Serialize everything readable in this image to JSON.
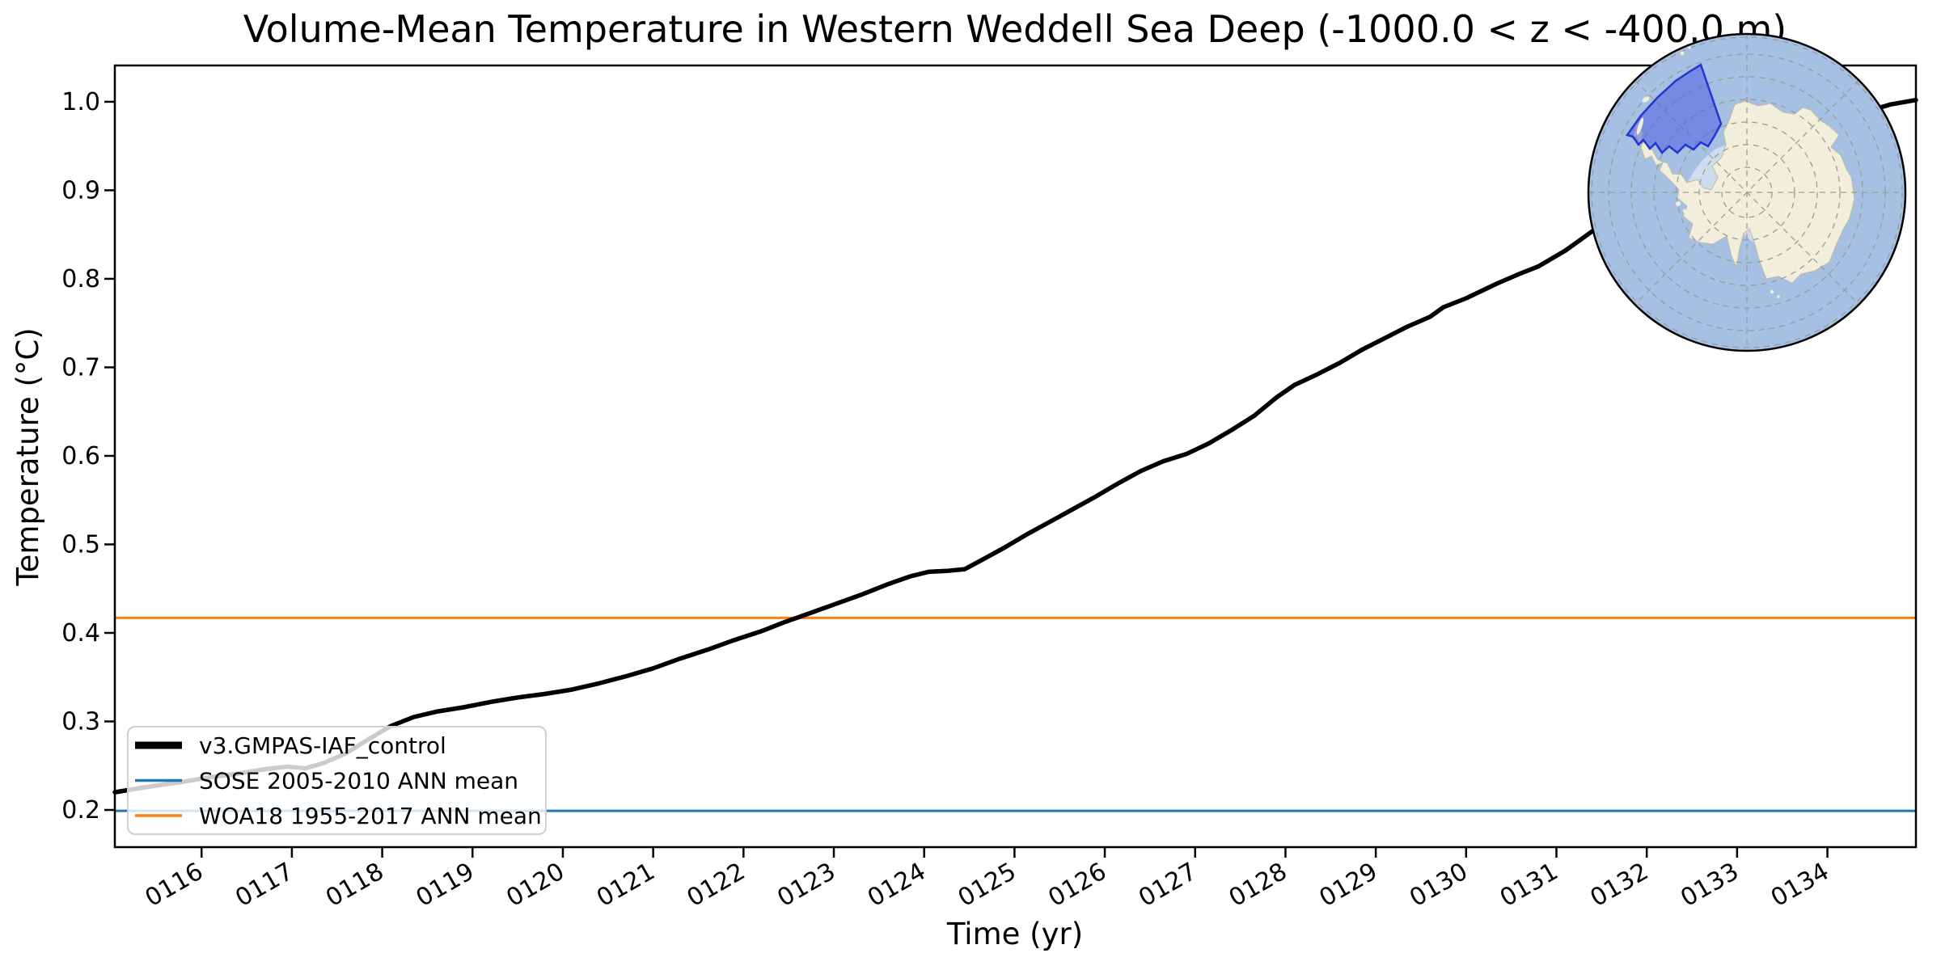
{
  "title": "Volume-Mean Temperature in Western Weddell Sea Deep (-1000.0 < z < -400.0 m)",
  "axes": {
    "xlabel": "Time (yr)",
    "ylabel": "Temperature (°C)",
    "x_tick_labels": [
      "0116",
      "0117",
      "0118",
      "0119",
      "0120",
      "0121",
      "0122",
      "0123",
      "0124",
      "0125",
      "0126",
      "0127",
      "0128",
      "0129",
      "0130",
      "0131",
      "0132",
      "0133",
      "0134"
    ],
    "y_tick_labels": [
      "0.2",
      "0.3",
      "0.4",
      "0.5",
      "0.6",
      "0.7",
      "0.8",
      "0.9",
      "1.0"
    ]
  },
  "legend": {
    "items": [
      {
        "label": "v3.GMPAS-IAF_control",
        "color": "#000000",
        "line_width": 9
      },
      {
        "label": "SOSE 2005-2010 ANN mean",
        "color": "#1f77b4",
        "line_width": 3.5
      },
      {
        "label": "WOA18 1955-2017 ANN mean",
        "color": "#ff7f0e",
        "line_width": 3.5
      }
    ]
  },
  "chart_data": {
    "type": "line",
    "title": "Volume-Mean Temperature in Western Weddell Sea Deep (-1000.0 < z < -400.0 m)",
    "xlabel": "Time (yr)",
    "ylabel": "Temperature (°C)",
    "xlim": [
      115.04,
      134.98
    ],
    "ylim": [
      0.158,
      1.041
    ],
    "x_ticks": [
      116,
      117,
      118,
      119,
      120,
      121,
      122,
      123,
      124,
      125,
      126,
      127,
      128,
      129,
      130,
      131,
      132,
      133,
      134
    ],
    "y_ticks": [
      0.2,
      0.3,
      0.4,
      0.5,
      0.6,
      0.7,
      0.8,
      0.9,
      1.0
    ],
    "grid": false,
    "legend_position": "lower left",
    "series": [
      {
        "name": "v3.GMPAS-IAF_control",
        "type": "line",
        "color": "#000000",
        "points": [
          [
            115.04,
            0.22
          ],
          [
            115.4,
            0.226
          ],
          [
            115.8,
            0.232
          ],
          [
            116.1,
            0.237
          ],
          [
            116.4,
            0.241
          ],
          [
            116.7,
            0.246
          ],
          [
            116.95,
            0.249
          ],
          [
            117.15,
            0.247
          ],
          [
            117.35,
            0.253
          ],
          [
            117.6,
            0.264
          ],
          [
            117.85,
            0.28
          ],
          [
            118.1,
            0.295
          ],
          [
            118.35,
            0.305
          ],
          [
            118.6,
            0.311
          ],
          [
            118.9,
            0.316
          ],
          [
            119.2,
            0.322
          ],
          [
            119.5,
            0.327
          ],
          [
            119.8,
            0.331
          ],
          [
            120.1,
            0.336
          ],
          [
            120.4,
            0.343
          ],
          [
            120.7,
            0.351
          ],
          [
            121.0,
            0.36
          ],
          [
            121.3,
            0.371
          ],
          [
            121.6,
            0.381
          ],
          [
            121.9,
            0.392
          ],
          [
            122.2,
            0.402
          ],
          [
            122.45,
            0.412
          ],
          [
            122.7,
            0.421
          ],
          [
            123.0,
            0.432
          ],
          [
            123.3,
            0.443
          ],
          [
            123.6,
            0.455
          ],
          [
            123.85,
            0.464
          ],
          [
            124.05,
            0.469
          ],
          [
            124.25,
            0.47
          ],
          [
            124.45,
            0.472
          ],
          [
            124.65,
            0.483
          ],
          [
            124.9,
            0.497
          ],
          [
            125.15,
            0.512
          ],
          [
            125.4,
            0.526
          ],
          [
            125.65,
            0.54
          ],
          [
            125.9,
            0.554
          ],
          [
            126.15,
            0.569
          ],
          [
            126.4,
            0.583
          ],
          [
            126.65,
            0.594
          ],
          [
            126.9,
            0.602
          ],
          [
            127.15,
            0.614
          ],
          [
            127.4,
            0.629
          ],
          [
            127.65,
            0.645
          ],
          [
            127.9,
            0.666
          ],
          [
            128.1,
            0.68
          ],
          [
            128.35,
            0.692
          ],
          [
            128.6,
            0.705
          ],
          [
            128.85,
            0.72
          ],
          [
            129.1,
            0.733
          ],
          [
            129.35,
            0.746
          ],
          [
            129.6,
            0.757
          ],
          [
            129.75,
            0.768
          ],
          [
            130.0,
            0.778
          ],
          [
            130.35,
            0.795
          ],
          [
            130.6,
            0.806
          ],
          [
            130.8,
            0.814
          ],
          [
            131.1,
            0.832
          ],
          [
            131.4,
            0.854
          ],
          [
            131.7,
            0.872
          ],
          [
            132.0,
            0.888
          ],
          [
            132.4,
            0.906
          ],
          [
            132.8,
            0.924
          ],
          [
            133.2,
            0.941
          ],
          [
            133.6,
            0.958
          ],
          [
            134.0,
            0.974
          ],
          [
            134.4,
            0.988
          ],
          [
            134.7,
            0.997
          ],
          [
            134.98,
            1.002
          ]
        ]
      },
      {
        "name": "SOSE 2005-2010 ANN mean",
        "type": "hline",
        "color": "#1f77b4",
        "value": 0.199
      },
      {
        "name": "WOA18 1955-2017 ANN mean",
        "type": "hline",
        "color": "#ff7f0e",
        "value": 0.417
      }
    ]
  },
  "inset_map": {
    "colors": {
      "ocean": "#a5c0e2",
      "land": "#f1efdc",
      "land_edge": "#bdb9a4",
      "region_fill": "#4c5fe0",
      "region_edge": "#2533d2",
      "graticule": "#9a9a9a",
      "shelf": "#cddcee",
      "border": "#000000"
    }
  }
}
